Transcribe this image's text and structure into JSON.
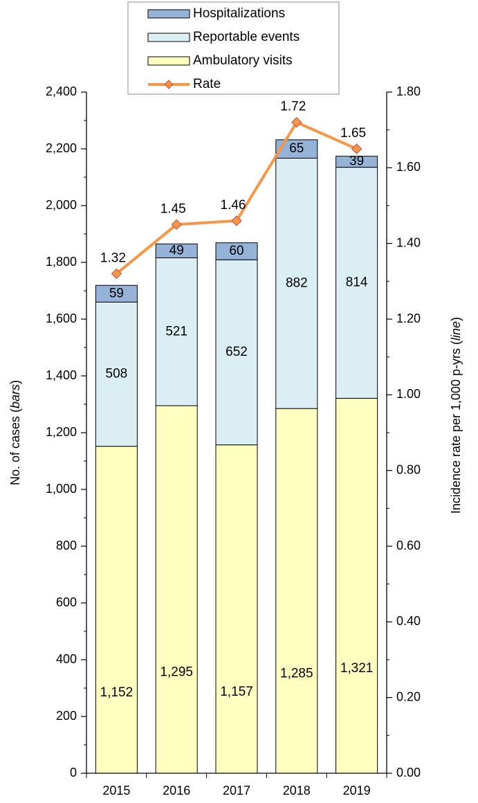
{
  "chart_data": {
    "type": "bar",
    "stacked": true,
    "categories": [
      "2015",
      "2016",
      "2017",
      "2018",
      "2019"
    ],
    "series": [
      {
        "name": "Ambulatory visits",
        "values": [
          1152,
          1295,
          1157,
          1285,
          1321
        ],
        "labels": [
          "1,152",
          "1,295",
          "1,157",
          "1,285",
          "1,321"
        ],
        "color": "#FFFFC0"
      },
      {
        "name": "Reportable events",
        "values": [
          508,
          521,
          652,
          882,
          814
        ],
        "labels": [
          "508",
          "521",
          "652",
          "882",
          "814"
        ],
        "color": "#DAEEF3"
      },
      {
        "name": "Hospitalizations",
        "values": [
          59,
          49,
          60,
          65,
          39
        ],
        "labels": [
          "59",
          "49",
          "60",
          "65",
          "39"
        ],
        "color": "#95B3D7"
      }
    ],
    "line_series": {
      "name": "Rate",
      "values": [
        1.32,
        1.45,
        1.46,
        1.72,
        1.65
      ],
      "labels": [
        "1.32",
        "1.45",
        "1.46",
        "1.72",
        "1.65"
      ],
      "color": "#F79646",
      "axis": "right"
    },
    "y_left": {
      "label_main": "No. of cases (",
      "label_italic": "bars",
      "label_end": ")",
      "ylim": [
        0,
        2400
      ],
      "ticks": [
        {
          "v": 0,
          "t": "0"
        },
        {
          "v": 200,
          "t": "200"
        },
        {
          "v": 400,
          "t": "400"
        },
        {
          "v": 600,
          "t": "600"
        },
        {
          "v": 800,
          "t": "800"
        },
        {
          "v": 1000,
          "t": "1,000"
        },
        {
          "v": 1200,
          "t": "1,200"
        },
        {
          "v": 1400,
          "t": "1,400"
        },
        {
          "v": 1600,
          "t": "1,600"
        },
        {
          "v": 1800,
          "t": "1,800"
        },
        {
          "v": 2000,
          "t": "2,000"
        },
        {
          "v": 2200,
          "t": "2,200"
        },
        {
          "v": 2400,
          "t": "2,400"
        }
      ]
    },
    "y_right": {
      "label_main": "Incidence rate per 1,000 p-yrs (",
      "label_italic": "line",
      "label_end": ")",
      "ylim": [
        0,
        1.8
      ],
      "ticks": [
        {
          "v": 0,
          "t": "0.00"
        },
        {
          "v": 0.2,
          "t": "0.20"
        },
        {
          "v": 0.4,
          "t": "0.40"
        },
        {
          "v": 0.6,
          "t": "0.60"
        },
        {
          "v": 0.8,
          "t": "0.80"
        },
        {
          "v": 1.0,
          "t": "1.00"
        },
        {
          "v": 1.2,
          "t": "1.20"
        },
        {
          "v": 1.4,
          "t": "1.40"
        },
        {
          "v": 1.6,
          "t": "1.60"
        },
        {
          "v": 1.8,
          "t": "1.80"
        }
      ]
    },
    "legend": {
      "placement": "top",
      "items": [
        {
          "label": "Hospitalizations",
          "kind": "bar",
          "color": "#95B3D7"
        },
        {
          "label": "Reportable events",
          "kind": "bar",
          "color": "#DAEEF3"
        },
        {
          "label": "Ambulatory visits",
          "kind": "bar",
          "color": "#FFFFC0"
        },
        {
          "label": "Rate",
          "kind": "line",
          "color": "#F79646"
        }
      ]
    },
    "grid": false
  }
}
